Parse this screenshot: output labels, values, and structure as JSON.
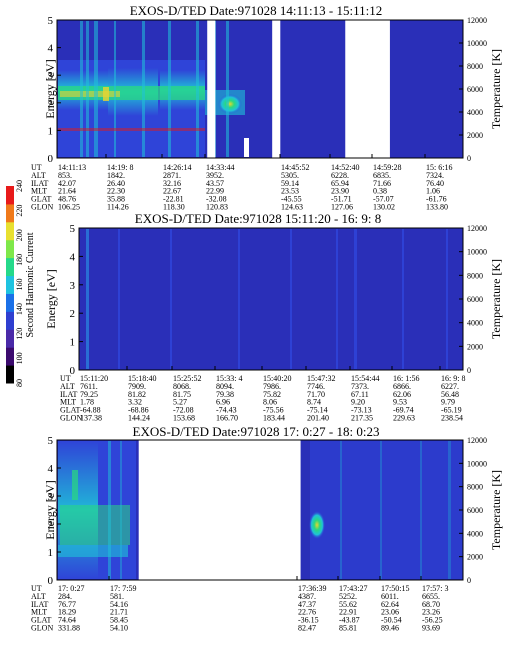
{
  "colorbar": {
    "label": "Second Harmonic Current",
    "ticks": [
      "80",
      "100",
      "120",
      "140",
      "160",
      "180",
      "200",
      "220",
      "240"
    ],
    "colors": [
      "#000000",
      "#3b0a6e",
      "#4a2aa8",
      "#2f3fd0",
      "#1a70e8",
      "#1ec3e0",
      "#25d98a",
      "#7ee84a",
      "#e8e030",
      "#f07a1a",
      "#e81a1a"
    ]
  },
  "palette": {
    "background": "#2a2fb8",
    "band_blue": "#2f44d8",
    "cyan": "#1fc3d8",
    "green": "#2ad880",
    "yellow": "#e8d430",
    "red": "#e01a1a",
    "white": "#ffffff"
  },
  "row_labels": [
    "UT",
    "ALT",
    "ILAT",
    "MLT",
    "GLAT",
    "GLON"
  ],
  "chart_data": [
    {
      "type": "heatmap",
      "title": "EXOS-D/TED  Date:971028  14:11:13 - 15:11:12",
      "ylabel": "Energy [eV]",
      "y2label": "Temperature [K]",
      "yticks": [
        "0",
        "1",
        "2",
        "3",
        "4",
        "5"
      ],
      "y2ticks": [
        "0",
        "2000",
        "4000",
        "6000",
        "8000",
        "10000",
        "12000"
      ],
      "ylim": [
        0,
        5
      ],
      "y2lim": [
        0,
        12000
      ],
      "data_gaps": [
        [
          0.37,
          0.39
        ],
        [
          0.53,
          0.55
        ],
        [
          0.71,
          0.82
        ]
      ],
      "columns": [
        {
          "UT": "14:11:13",
          "ALT": "853.",
          "ILAT": "42.07",
          "MLT": "21.64",
          "GLAT": "48.76",
          "GLON": "106.25"
        },
        {
          "UT": "14:19: 8",
          "ALT": "1842.",
          "ILAT": "26.40",
          "MLT": "22.30",
          "GLAT": "35.88",
          "GLON": "114.26"
        },
        {
          "UT": "14:26:14",
          "ALT": "2871.",
          "ILAT": "32.16",
          "MLT": "22.67",
          "GLAT": "-22.81",
          "GLON": "118.30"
        },
        {
          "UT": "14:33:44",
          "ALT": "3952.",
          "ILAT": "43.57",
          "MLT": "22.99",
          "GLAT": "-32.08",
          "GLON": "120.83"
        },
        {
          "UT": "14:45:52",
          "ALT": "5305.",
          "ILAT": "59.14",
          "MLT": "23.53",
          "GLAT": "-45.55",
          "GLON": "124.63"
        },
        {
          "UT": "14:52:40",
          "ALT": "6228.",
          "ILAT": "65.94",
          "MLT": "23.90",
          "GLAT": "-51.71",
          "GLON": "127.06"
        },
        {
          "UT": "14:59:28",
          "ALT": "6835.",
          "ILAT": "71.66",
          "MLT": "0.38",
          "GLAT": "-57.07",
          "GLON": "130.02"
        },
        {
          "UT": "15: 6:16",
          "ALT": "7324.",
          "ILAT": "76.40",
          "MLT": "1.06",
          "GLAT": "-61.76",
          "GLON": "133.80"
        }
      ]
    },
    {
      "type": "heatmap",
      "title": "EXOS-D/TED   Date:971028  15:11:20 - 16: 9: 8",
      "ylabel": "Energy [eV]",
      "y2label": "Temperature [K]",
      "yticks": [
        "0",
        "1",
        "2",
        "3",
        "4",
        "5"
      ],
      "y2ticks": [
        "0",
        "2000",
        "4000",
        "6000",
        "8000",
        "10000",
        "12000"
      ],
      "ylim": [
        0,
        5
      ],
      "y2lim": [
        0,
        12000
      ],
      "data_gaps": [],
      "columns": [
        {
          "UT": "15:11:20",
          "ALT": "7611.",
          "ILAT": "79.25",
          "MLT": "1.78",
          "GLAT": "-64.88",
          "GLON": "137.38"
        },
        {
          "UT": "15:18:40",
          "ALT": "7909.",
          "ILAT": "81.82",
          "MLT": "3.32",
          "GLAT": "-68.86",
          "GLON": "144.24"
        },
        {
          "UT": "15:25:52",
          "ALT": "8068.",
          "ILAT": "81.75",
          "MLT": "5.27",
          "GLAT": "-72.08",
          "GLON": "153.68"
        },
        {
          "UT": "15:33: 4",
          "ALT": "8094.",
          "ILAT": "79.38",
          "MLT": "6.96",
          "GLAT": "-74.43",
          "GLON": "166.70"
        },
        {
          "UT": "15:40:20",
          "ALT": "7986.",
          "ILAT": "75.82",
          "MLT": "8.06",
          "GLAT": "-75.56",
          "GLON": "183.44"
        },
        {
          "UT": "15:47:32",
          "ALT": "7746.",
          "ILAT": "71.70",
          "MLT": "8.74",
          "GLAT": "-75.14",
          "GLON": "201.40"
        },
        {
          "UT": "15:54:44",
          "ALT": "7373.",
          "ILAT": "67.11",
          "MLT": "9.20",
          "GLAT": "-73.13",
          "GLON": "217.35"
        },
        {
          "UT": "16: 1:56",
          "ALT": "6866.",
          "ILAT": "62.06",
          "MLT": "9.53",
          "GLAT": "-69.74",
          "GLON": "229.63"
        },
        {
          "UT": "16: 9: 8",
          "ALT": "6227.",
          "ILAT": "56.48",
          "MLT": "9.79",
          "GLAT": "-65.19",
          "GLON": "238.54"
        }
      ]
    },
    {
      "type": "heatmap",
      "title": "EXOS-D/TED   Date:971028  17: 0:27 - 18: 0:23",
      "ylabel": "Energy [eV]",
      "y2label": "Temperature [K]",
      "yticks": [
        "0",
        "1",
        "2",
        "3",
        "4",
        "5"
      ],
      "y2ticks": [
        "0",
        "2000",
        "4000",
        "6000",
        "8000",
        "10000",
        "12000"
      ],
      "ylim": [
        0,
        5
      ],
      "y2lim": [
        0,
        12000
      ],
      "data_gaps": [
        [
          0.2,
          0.6
        ]
      ],
      "columns": [
        {
          "UT": "17: 0:27",
          "ALT": "284.",
          "ILAT": "76.77",
          "MLT": "18.29",
          "GLAT": "74.64",
          "GLON": "331.88"
        },
        {
          "UT": "17: 7:59",
          "ALT": "581.",
          "ILAT": "54.16",
          "MLT": "21.71",
          "GLAT": "58.45",
          "GLON": "54.10"
        },
        {
          "UT": "17:36:39",
          "ALT": "4387.",
          "ILAT": "47.37",
          "MLT": "22.76",
          "GLAT": "-36.15",
          "GLON": "82.47"
        },
        {
          "UT": "17:43:27",
          "ALT": "5252.",
          "ILAT": "55.62",
          "MLT": "22.91",
          "GLAT": "-43.87",
          "GLON": "85.81"
        },
        {
          "UT": "17:50:15",
          "ALT": "6011.",
          "ILAT": "62.64",
          "MLT": "23.06",
          "GLAT": "-50.54",
          "GLON": "89.46"
        },
        {
          "UT": "17:57: 3",
          "ALT": "6655.",
          "ILAT": "68.70",
          "MLT": "23.26",
          "GLAT": "-56.25",
          "GLON": "93.69"
        }
      ]
    }
  ]
}
